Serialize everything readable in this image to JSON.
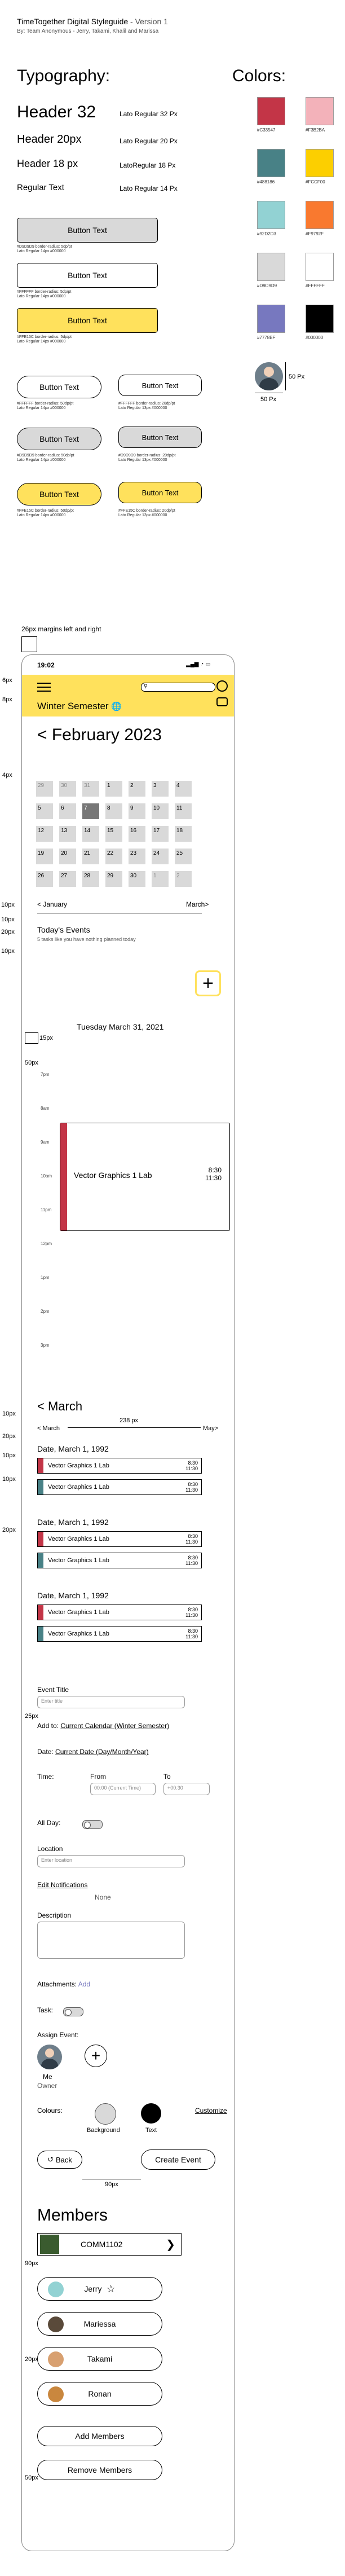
{
  "header": {
    "title": "TimeTogether Digital Styleguide",
    "version": "- Version 1",
    "byline": "By: Team Anonymous - Jerry, Takami, Khalil and Marissa"
  },
  "typography": {
    "heading": "Typography:",
    "items": [
      {
        "label": "Header 32",
        "spec": "Lato Regular 32 Px"
      },
      {
        "label": "Header 20px",
        "spec": "Lato Regular 20 Px"
      },
      {
        "label": "Header 18 px",
        "spec": "LatoRegular 18 Px"
      },
      {
        "label": "Regular Text",
        "spec": "Lato Regular 14 Px"
      }
    ]
  },
  "colors": {
    "heading": "Colors:",
    "swatches": [
      {
        "hex": "#C33547",
        "label": "#C33547"
      },
      {
        "hex": "#F3B2BA",
        "label": "#F3B2BA"
      },
      {
        "hex": "#488186",
        "label": "#488186"
      },
      {
        "hex": "#FCCF00",
        "label": "#FCCF00"
      },
      {
        "hex": "#92D2D3",
        "label": "#92D2D3"
      },
      {
        "hex": "#F9792F",
        "label": "#F9792F"
      },
      {
        "hex": "#D9D9D9",
        "label": "#D9D9D9"
      },
      {
        "hex": "#FFFFFF",
        "label": "#FFFFFF"
      },
      {
        "hex": "#7778BF",
        "label": "#7778BF"
      },
      {
        "hex": "#000000",
        "label": "#000000"
      }
    ],
    "avatar_w": "50 Px",
    "avatar_h": "50 Px"
  },
  "buttons": {
    "label": "Button Text",
    "b1_cap": "#D9D9D9 border-radius: 5dp/pt\nLato Regular 14px #000000",
    "b2_cap": "#FFFFFF border-radius: 5dp/pt\nLato Regular 14px #000000",
    "b3_cap": "#FFE15C border-radius: 5dp/pt\nLato Regular 14px #000000",
    "b4_cap": "#FFFFFF border-radius: 50dp/pt\nLato Regular 14px #000000",
    "b5_cap": "#FFFFFF border-radius: 20dp/pt\nLato Regular 13px #000000",
    "b6_cap": "#D9D9D9 border-radius: 50dp/pt\nLato Regular 14px #000000",
    "b7_cap": "#D9D9D9 border-radius: 20dp/pt\nLato Regular 13px #000000",
    "b8_cap": "#FFE15C border-radius: 50dp/pt\nLato Regular 14px #000000",
    "b9_cap": "#FFE15C border-radius: 20dp/pt\nLato Regular 13px #000000"
  },
  "annotations": {
    "margins": "26px margins left and right",
    "px6": "6px",
    "px8": "8px",
    "px4": "4px",
    "px10a": "10px",
    "px10b": "10px",
    "px20a": "20px",
    "px10c": "10px",
    "px15": "15px",
    "px50": "50px",
    "px10d": "10px",
    "px20b": "20px",
    "px10e": "10px",
    "px10f": "10px",
    "px20c": "20px",
    "px25": "25px",
    "px90a": "90px",
    "px90b": "90px",
    "px20d": "20px",
    "px50b": "50px",
    "px238": "238 px"
  },
  "phone": {
    "time": "19:02",
    "semester": "Winter Semester",
    "month": "< February 2023",
    "weeks": [
      [
        "29",
        "30",
        "31",
        "1",
        "2",
        "3",
        "4"
      ],
      [
        "5",
        "6",
        "7",
        "8",
        "9",
        "10",
        "11"
      ],
      [
        "12",
        "13",
        "14",
        "15",
        "16",
        "17",
        "18"
      ],
      [
        "19",
        "20",
        "21",
        "22",
        "23",
        "24",
        "25"
      ],
      [
        "26",
        "27",
        "28",
        "29",
        "30",
        "1",
        "2"
      ]
    ],
    "prev_month": "< January",
    "next_month": "March>",
    "today_title": "Today's Events",
    "today_sub": "5 tasks like you have nothing planned today",
    "day_title": "Tuesday March 31, 2021",
    "hours": [
      "7pm",
      "8am",
      "9am",
      "10am",
      "11pm",
      "12pm",
      "1pm",
      "2pm",
      "3pm"
    ],
    "day_event": {
      "name": "Vector Graphics 1 Lab",
      "start": "8:30",
      "end": "11:30"
    },
    "march_title": "< March",
    "march_prev": "< March",
    "march_next": "May>",
    "date_groups": [
      {
        "date": "Date, March 1, 1992"
      },
      {
        "date": "Date, March 1, 1992"
      },
      {
        "date": "Date, March 1, 1992"
      }
    ],
    "event_name": "Vector Graphics 1 Lab",
    "event_start": "8:30",
    "event_end": "11:30"
  },
  "form": {
    "event_title_label": "Event Title",
    "event_title_ph": "Enter title",
    "add_to_label": "Add to:",
    "add_to_value": "Current Calendar (Winter Semester)",
    "date_label": "Date:",
    "date_value": "Current Date (Day/Month/Year)",
    "time_label": "Time:",
    "from_label": "From",
    "to_label": "To",
    "from_ph": "00:00 (Current Time)",
    "to_ph": "+00:30",
    "all_day_label": "All Day:",
    "location_label": "Location",
    "location_ph": "Enter location",
    "notifications_label": "Edit Notifications",
    "notifications_value": "None",
    "description_label": "Description",
    "attachments_label": "Attachments:",
    "attachments_add": "Add",
    "task_label": "Task:",
    "assign_label": "Assign Event:",
    "me_name": "Me",
    "me_role": "Owner",
    "colours_label": "Colours:",
    "customize": "Customize",
    "background_label": "Background",
    "text_label": "Text",
    "back_button": "Back",
    "create_button": "Create Event"
  },
  "members": {
    "title": "Members",
    "course": "COMM1102",
    "list": [
      {
        "name": "Jerry"
      },
      {
        "name": "Mariessa"
      },
      {
        "name": "Takami"
      },
      {
        "name": "Ronan"
      }
    ],
    "add_button": "Add Members",
    "remove_button": "Remove Members"
  }
}
